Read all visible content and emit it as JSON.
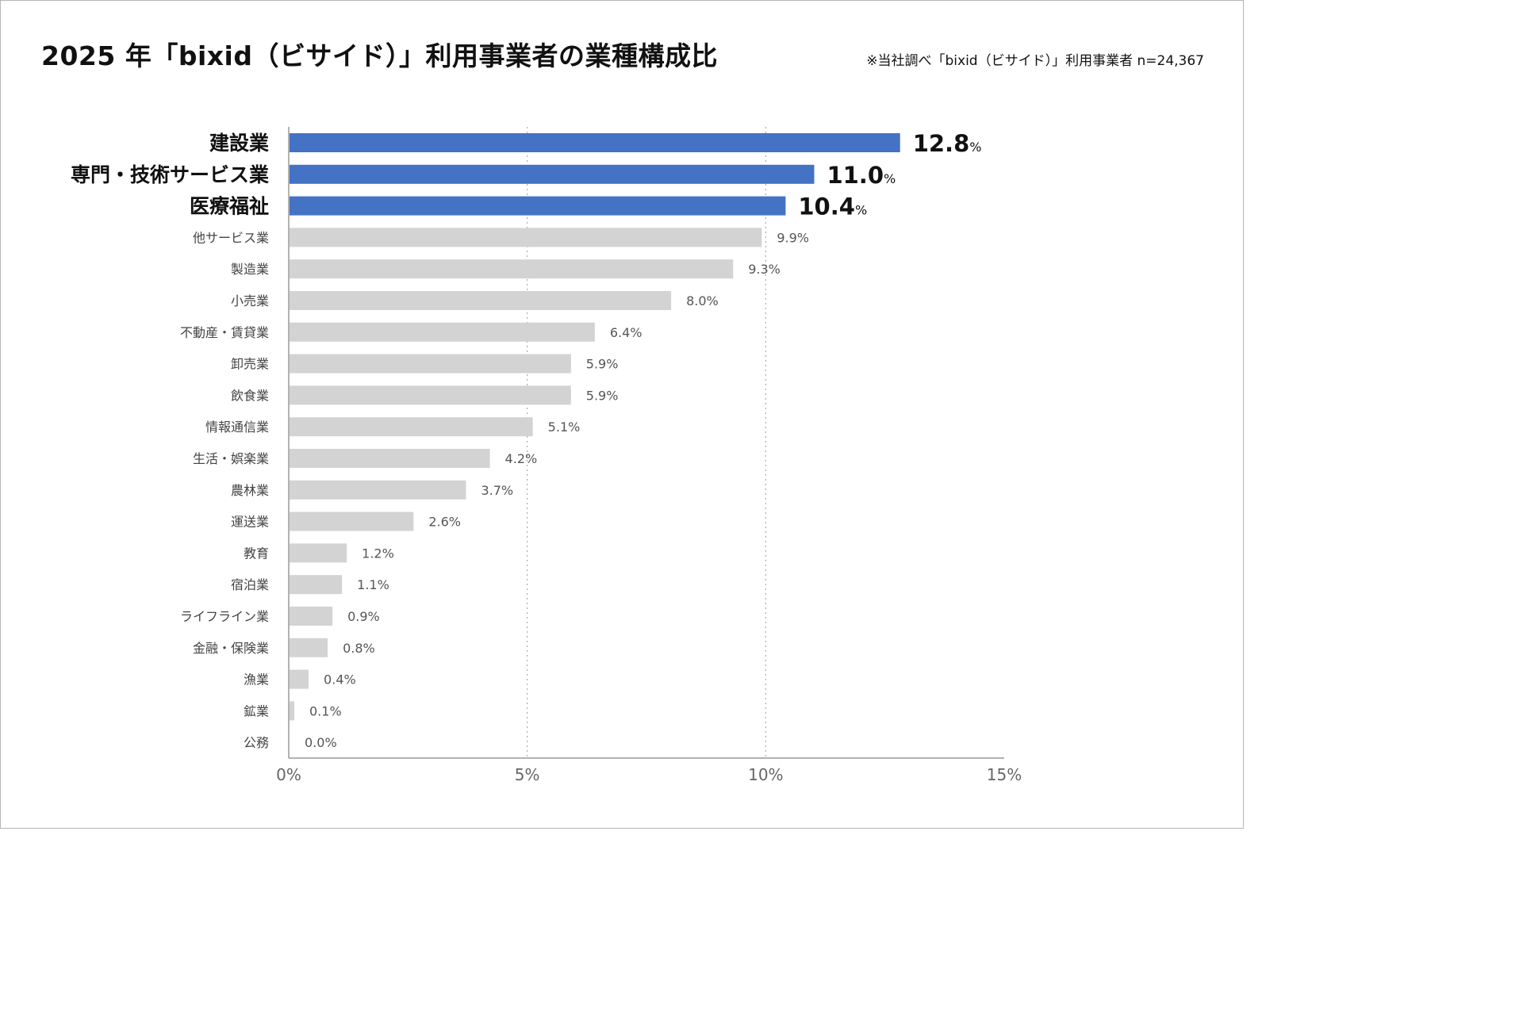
{
  "title": "2025 年「bixid（ビサイド）」利用事業者の業種構成比",
  "note": "※当社調べ「bixid（ビサイド）」利用事業者 n=24,367",
  "colors": {
    "highlight": "#4472c4",
    "default": "#d3d3d3",
    "axis": "#999999",
    "grid": "#aaaaaa"
  },
  "chart_data": {
    "type": "bar",
    "orientation": "horizontal",
    "title": "2025 年「bixid（ビサイド）」利用事業者の業種構成比",
    "xlabel": "",
    "ylabel": "",
    "xlim": [
      0,
      15
    ],
    "xticks": [
      "0%",
      "5%",
      "10%",
      "15%"
    ],
    "grid": "vertical dotted at 5% and 10%",
    "unit": "%",
    "highlighted_count": 3,
    "categories": [
      "建設業",
      "専門・技術サービス業",
      "医療福祉",
      "他サービス業",
      "製造業",
      "小売業",
      "不動産・賃貸業",
      "卸売業",
      "飲食業",
      "情報通信業",
      "生活・娯楽業",
      "農林業",
      "運送業",
      "教育",
      "宿泊業",
      "ライフライン業",
      "金融・保険業",
      "漁業",
      "鉱業",
      "公務"
    ],
    "values": [
      12.8,
      11.0,
      10.4,
      9.9,
      9.3,
      8.0,
      6.4,
      5.9,
      5.9,
      5.1,
      4.2,
      3.7,
      2.6,
      1.2,
      1.1,
      0.9,
      0.8,
      0.4,
      0.1,
      0.0
    ],
    "value_labels": [
      "12.8",
      "11.0",
      "10.4",
      "9.9%",
      "9.3%",
      "8.0%",
      "6.4%",
      "5.9%",
      "5.9%",
      "5.1%",
      "4.2%",
      "3.7%",
      "2.6%",
      "1.2%",
      "1.1%",
      "0.9%",
      "0.8%",
      "0.4%",
      "0.1%",
      "0.0%"
    ]
  }
}
